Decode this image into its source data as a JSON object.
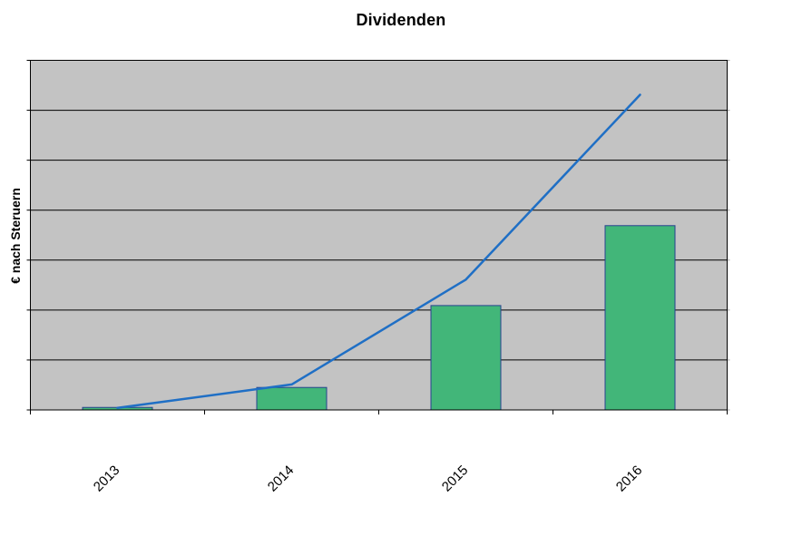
{
  "chart_data": {
    "type": "combo-bar-line",
    "title": "Dividenden",
    "ylabel": "€ nach Steruern",
    "xlabel": "",
    "categories": [
      "2013",
      "2014",
      "2015",
      "2016"
    ],
    "series": [
      {
        "name": "bars",
        "type": "bar",
        "values": [
          0.05,
          0.45,
          2.09,
          3.69
        ]
      },
      {
        "name": "line",
        "type": "line",
        "values": [
          0.04,
          0.51,
          2.61,
          6.31
        ]
      }
    ],
    "values_unit": "y-gridline intervals (y axis shows no numeric tick labels)",
    "ylim": [
      0,
      7
    ],
    "gridlines": {
      "horizontal_internal_count": 6,
      "style": "solid"
    },
    "legend": "none",
    "x_label_rotation_deg": -45,
    "plot_area_background": "#C3C3C3",
    "colors": {
      "page_background": "#FFFFFF",
      "plot_background": "#C3C3C3",
      "bar_fill": "#42B679",
      "bar_border": "#26418F",
      "line": "#1F6FC5",
      "grid_and_border": "#000000",
      "text": "#000000"
    }
  }
}
